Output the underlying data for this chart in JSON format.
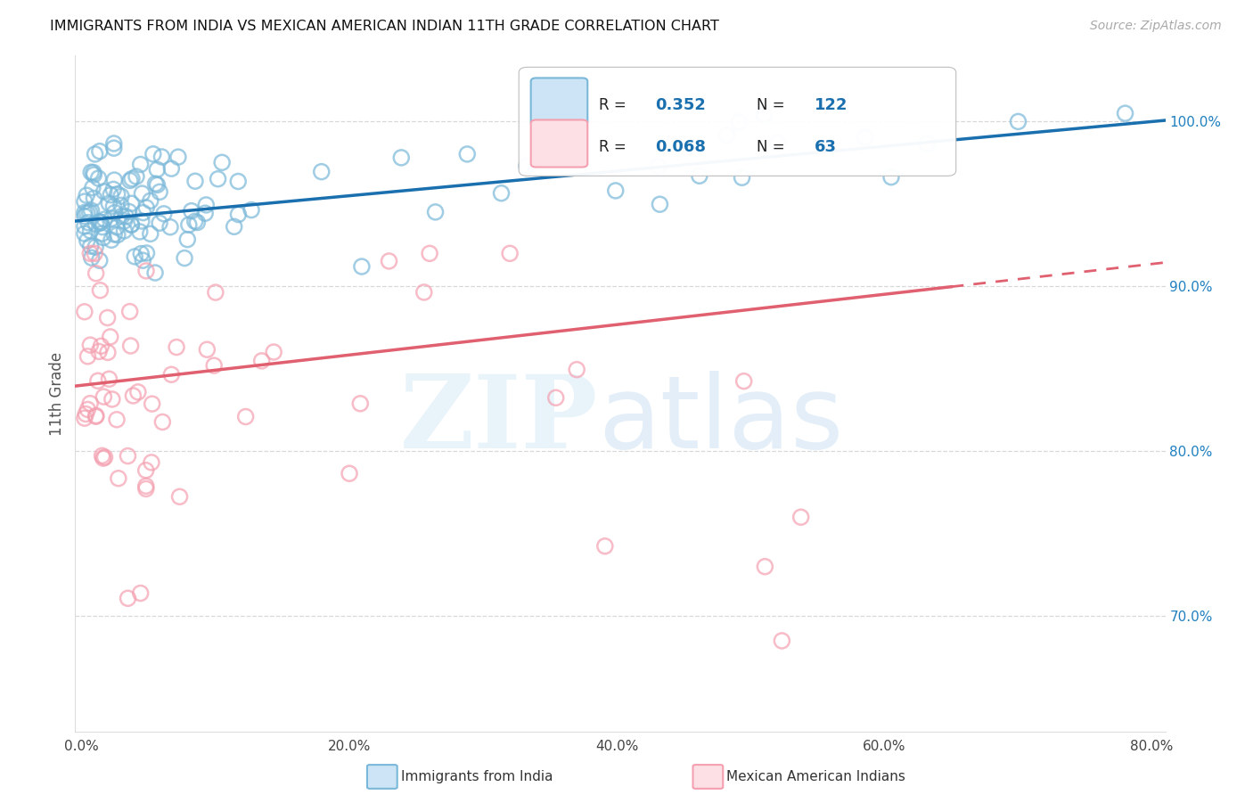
{
  "title": "IMMIGRANTS FROM INDIA VS MEXICAN AMERICAN INDIAN 11TH GRADE CORRELATION CHART",
  "source": "Source: ZipAtlas.com",
  "ylabel": "11th Grade",
  "x_tick_labels": [
    "0.0%",
    "20.0%",
    "40.0%",
    "60.0%",
    "80.0%"
  ],
  "x_tick_values": [
    0,
    20,
    40,
    60,
    80
  ],
  "y_tick_labels": [
    "100.0%",
    "90.0%",
    "80.0%",
    "70.0%"
  ],
  "y_tick_values": [
    100,
    90,
    80,
    70
  ],
  "xlim": [
    -0.5,
    81
  ],
  "ylim": [
    63,
    104
  ],
  "legend_label_blue": "Immigrants from India",
  "legend_label_pink": "Mexican American Indians",
  "R_blue": 0.352,
  "N_blue": 122,
  "R_pink": 0.068,
  "N_pink": 63,
  "blue_color": "#7ab8d9",
  "pink_color": "#f4a0b0",
  "blue_line_color": "#1a6faf",
  "pink_line_color": "#e06070",
  "title_fontsize": 11.5
}
